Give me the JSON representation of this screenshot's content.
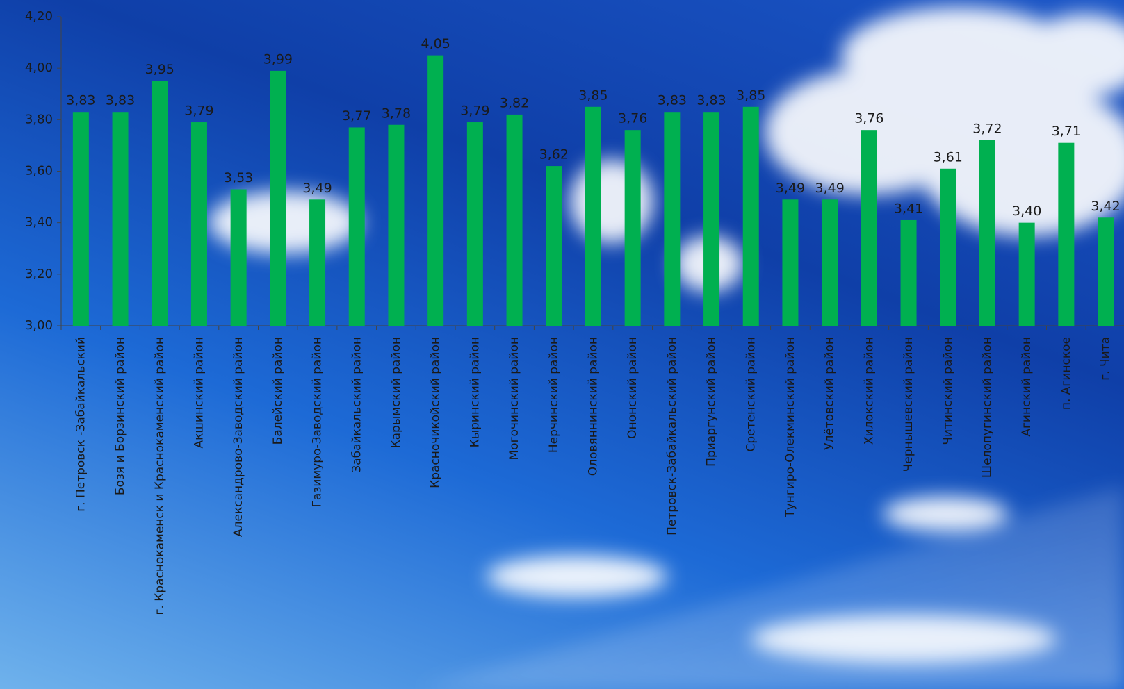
{
  "chart_data": {
    "type": "bar",
    "categories": [
      "г. Петровск -Забайкальский",
      "Бозя и Борзинский район",
      "г. Краснокаменск и Краснокаменский район",
      "Акшинский район",
      "Александрово-Заводский район",
      "Балейский район",
      "Газимуро-Заводский район",
      "Забайкальский район",
      "Карымский район",
      "Красночикойский район",
      "Кыринский район",
      "Могочинский район",
      "Нерчинский район",
      "Оловяннинский район",
      "Ононский район",
      "Петровск-Забайкальский район",
      "Приаргунский район",
      "Сретенский район",
      "Тунгиро-Олекминский район",
      "Улётовский район",
      "Хилокский район",
      "Чернышевский район",
      "Читинский район",
      "Шелопугинский район",
      "Агинский район",
      "п. Агинское",
      "г. Чита"
    ],
    "values": [
      3.83,
      3.83,
      3.95,
      3.79,
      3.53,
      3.99,
      3.49,
      3.77,
      3.78,
      4.05,
      3.79,
      3.82,
      3.62,
      3.85,
      3.76,
      3.83,
      3.83,
      3.85,
      3.49,
      3.49,
      3.76,
      3.41,
      3.61,
      3.72,
      3.4,
      3.71,
      3.42
    ],
    "value_labels": [
      "3,83",
      "3,83",
      "3,95",
      "3,79",
      "3,53",
      "3,99",
      "3,49",
      "3,77",
      "3,78",
      "4,05",
      "3,79",
      "3,82",
      "3,62",
      "3,85",
      "3,76",
      "3,83",
      "3,83",
      "3,85",
      "3,49",
      "3,49",
      "3,76",
      "3,41",
      "3,61",
      "3,72",
      "3,40",
      "3,71",
      "3,42"
    ],
    "color": "#00b050",
    "ylim": [
      3.0,
      4.2
    ],
    "yticks": [
      {
        "value": 3.0,
        "label": "3,00"
      },
      {
        "value": 3.2,
        "label": "3,20"
      },
      {
        "value": 3.4,
        "label": "3,40"
      },
      {
        "value": 3.6,
        "label": "3,60"
      },
      {
        "value": 3.8,
        "label": "3,80"
      },
      {
        "value": 4.0,
        "label": "4,00"
      },
      {
        "value": 4.2,
        "label": "4,20"
      }
    ],
    "grid": false
  }
}
